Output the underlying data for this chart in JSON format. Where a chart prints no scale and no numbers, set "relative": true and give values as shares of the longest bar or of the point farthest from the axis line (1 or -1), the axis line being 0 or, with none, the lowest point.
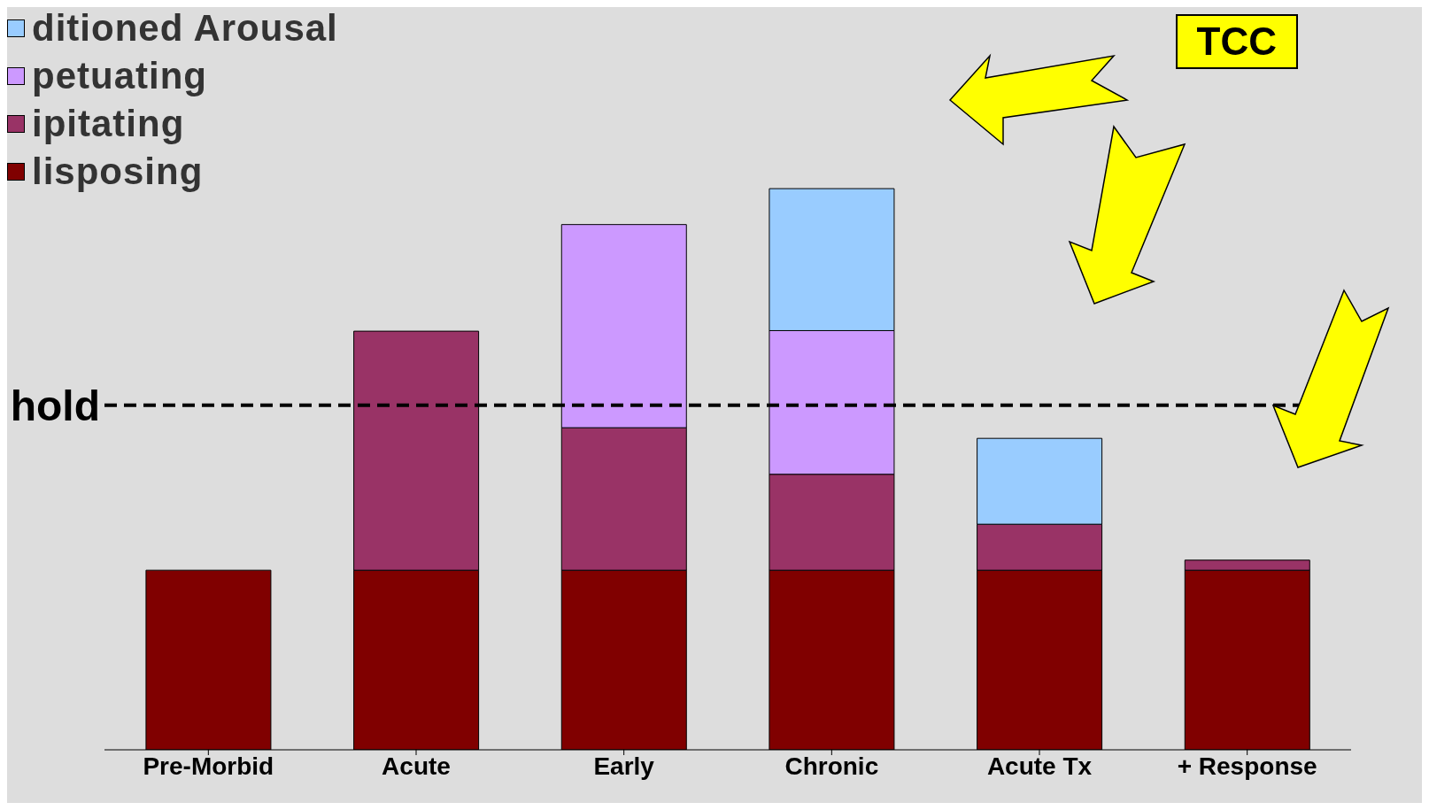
{
  "chart_data": {
    "type": "bar",
    "stacked": true,
    "relative": true,
    "legend": "top left",
    "categories": [
      "Pre-Morbid",
      "Acute",
      "Early",
      "Chronic",
      "Acute Tx",
      "+ Response"
    ],
    "series": [
      {
        "name": "lisposing",
        "color": "#800000",
        "values": [
          0.32,
          0.32,
          0.32,
          0.32,
          0.32,
          0.32
        ]
      },
      {
        "name": "ipitating",
        "color": "#993366",
        "values": [
          null,
          0.426,
          0.254,
          0.171,
          0.082,
          0.018
        ]
      },
      {
        "name": "petuating",
        "color": "#cc99ff",
        "values": [
          null,
          null,
          0.362,
          0.256,
          null,
          null
        ]
      },
      {
        "name": "ditioned Arousal",
        "color": "#99ccff",
        "values": [
          null,
          null,
          null,
          0.253,
          0.153,
          null
        ]
      }
    ],
    "ref_lines": [
      {
        "axis": "y",
        "value": 0.614,
        "label": "hold",
        "color": "#000000",
        "line_style": "dashed"
      }
    ],
    "annotations": [
      "TCC"
    ]
  }
}
